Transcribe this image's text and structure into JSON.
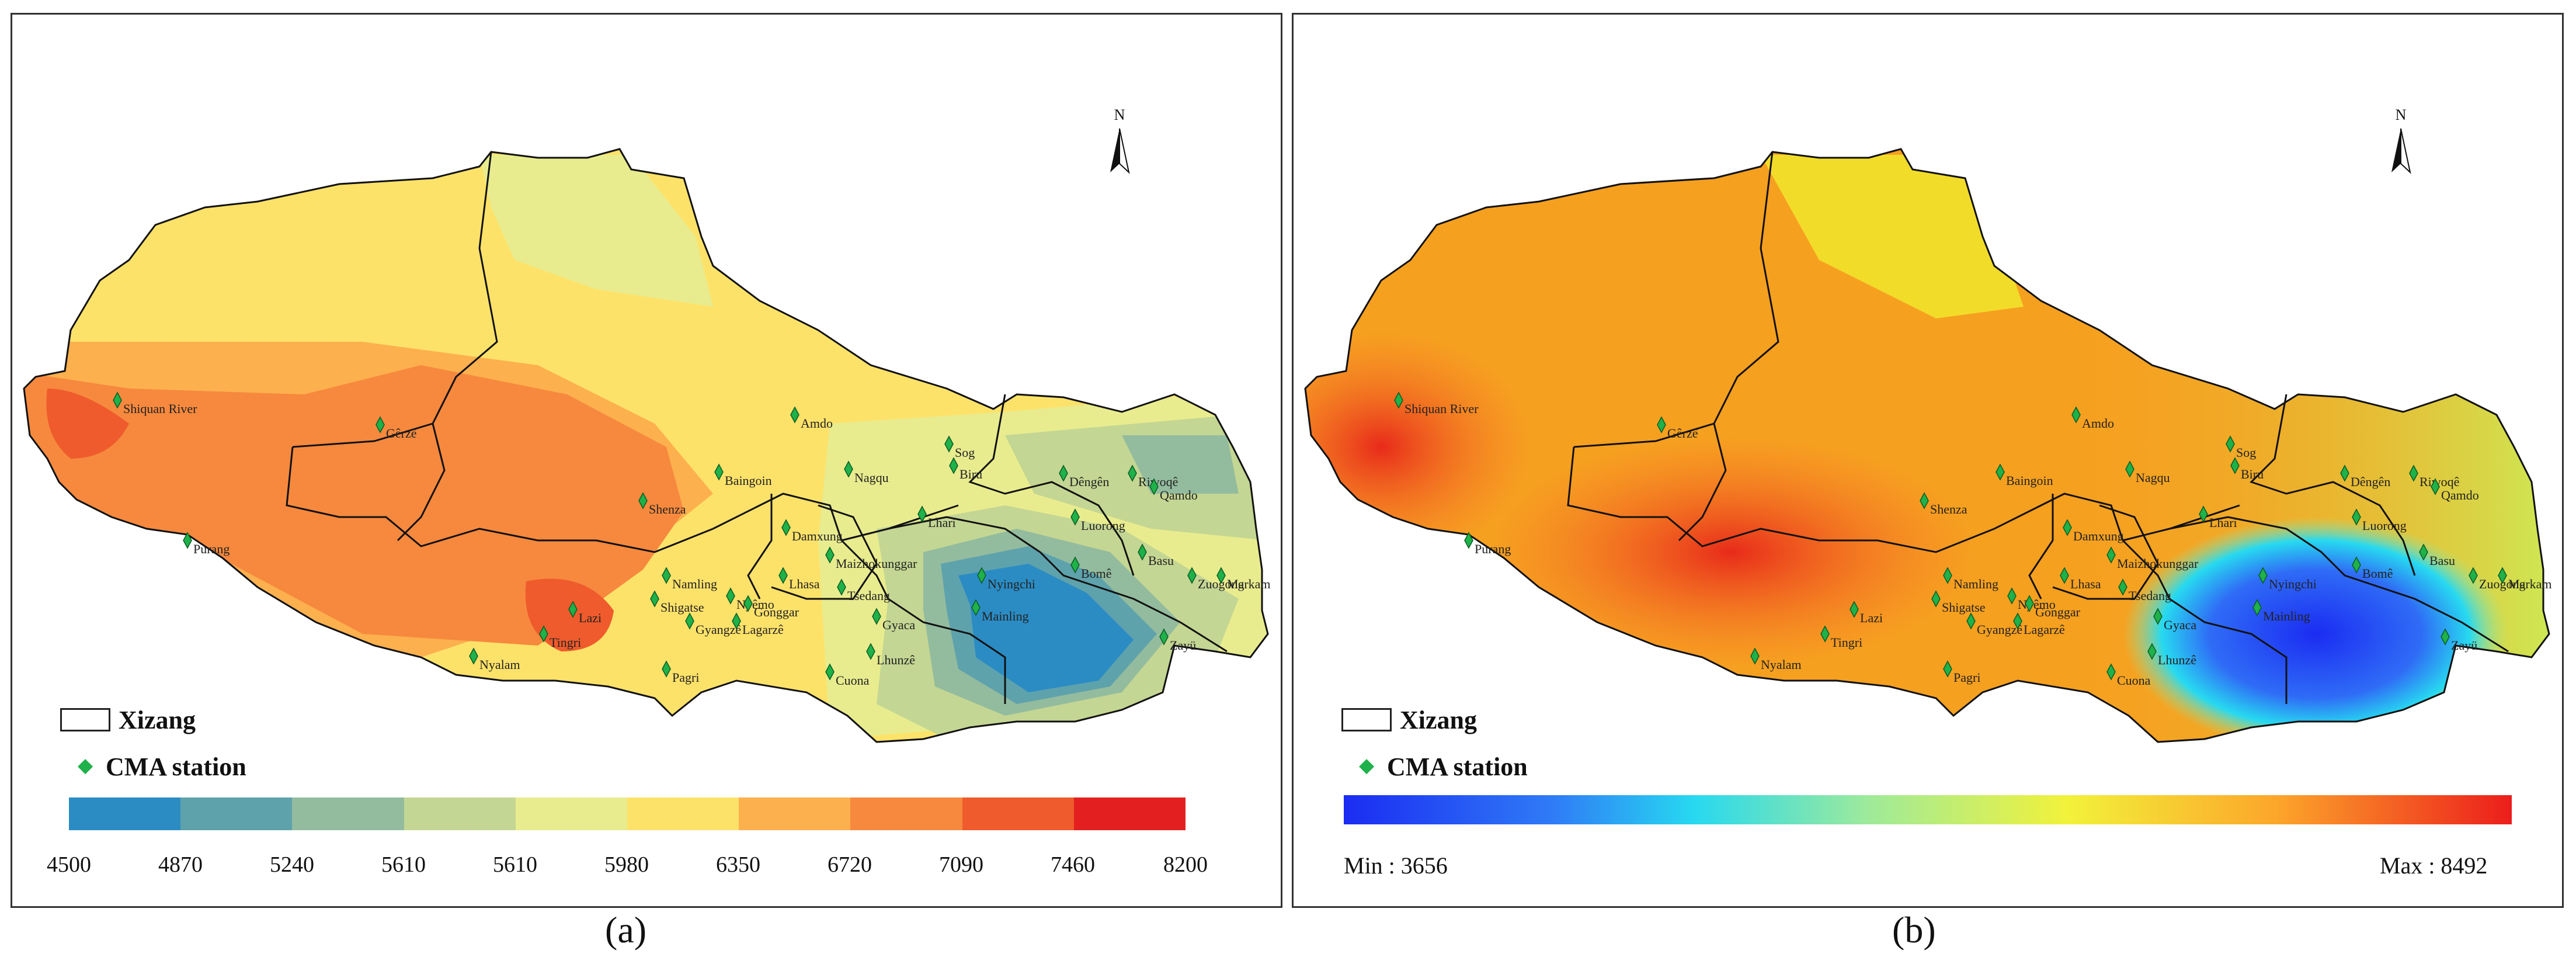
{
  "panel_a": {
    "caption": "(a)",
    "north_label": "N",
    "legend": {
      "region_label": "Xizang",
      "station_label": "CMA station"
    },
    "colorbar_ticks": [
      "4500",
      "4870",
      "5240",
      "5610",
      "5610",
      "5980",
      "6350",
      "6720",
      "7090",
      "7460",
      "8200"
    ],
    "colorbar_colors": [
      "#2b8cc4",
      "#5ea2ac",
      "#93bc9e",
      "#c4d693",
      "#e8ec8e",
      "#fde26a",
      "#fdb04e",
      "#f6893e",
      "#ef5b2c",
      "#e3201f"
    ]
  },
  "panel_b": {
    "caption": "(b)",
    "north_label": "N",
    "legend": {
      "region_label": "Xizang",
      "station_label": "CMA station"
    },
    "min_label": "Min : 3656",
    "max_label": "Max : 8492"
  },
  "stations": [
    {
      "name": "Shiquan River"
    },
    {
      "name": "Gêrzê"
    },
    {
      "name": "Amdo"
    },
    {
      "name": "Sog"
    },
    {
      "name": "Biru"
    },
    {
      "name": "Riwoqê"
    },
    {
      "name": "Dêngên"
    },
    {
      "name": "Qamdo"
    },
    {
      "name": "Nagqu"
    },
    {
      "name": "Baingoin"
    },
    {
      "name": "Shenza"
    },
    {
      "name": "Purang"
    },
    {
      "name": "Damxung"
    },
    {
      "name": "Lhari"
    },
    {
      "name": "Luorong"
    },
    {
      "name": "Maizhokunggar"
    },
    {
      "name": "Basu"
    },
    {
      "name": "Bomê"
    },
    {
      "name": "Zuogong"
    },
    {
      "name": "Markam"
    },
    {
      "name": "Namling"
    },
    {
      "name": "Lhasa"
    },
    {
      "name": "Tsedang"
    },
    {
      "name": "Nyingchi"
    },
    {
      "name": "Nyêmo"
    },
    {
      "name": "Shigatse"
    },
    {
      "name": "Gonggar"
    },
    {
      "name": "Lazi"
    },
    {
      "name": "Gyangzê"
    },
    {
      "name": "Lagarzê"
    },
    {
      "name": "Gyaca"
    },
    {
      "name": "Mainling"
    },
    {
      "name": "Tingri"
    },
    {
      "name": "Zayü"
    },
    {
      "name": "Nyalam"
    },
    {
      "name": "Pagri"
    },
    {
      "name": "Lhunzê"
    },
    {
      "name": "Cuona"
    }
  ]
}
